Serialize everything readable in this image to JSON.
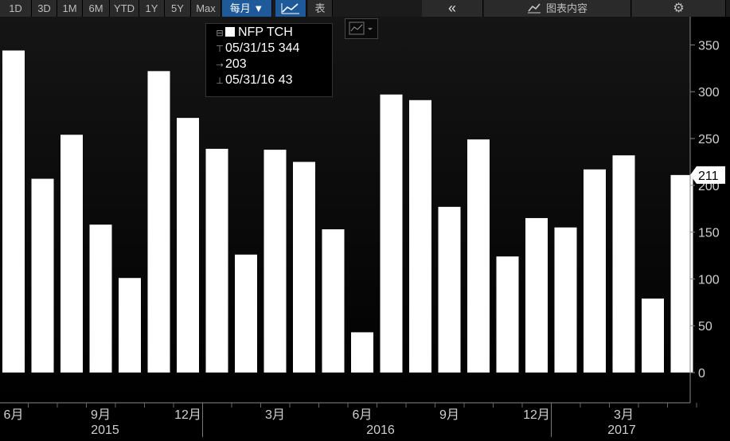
{
  "toolbar": {
    "ranges": [
      "1D",
      "3D",
      "1M",
      "6M",
      "YTD",
      "1Y",
      "5Y",
      "Max"
    ],
    "frequency": "每月 ▼",
    "table_label": "表",
    "collapse_label": "«",
    "chart_content_label": "图表内容",
    "icons": [
      "line-chart-icon",
      "collapse-icon",
      "chart-content-icon",
      "gear-icon"
    ]
  },
  "legend": {
    "series": "NFP TCH",
    "high": "05/31/15 344",
    "average": "203",
    "low": "05/31/16 43"
  },
  "last_value_label": "211",
  "colors": {
    "bar": "#ffffff",
    "background": "#000000",
    "plot_top": "#141414",
    "last_value_bg": "#ffffff"
  },
  "chart_data": {
    "type": "bar",
    "series": [
      {
        "name": "NFP TCH",
        "values": [
          344,
          207,
          254,
          158,
          101,
          322,
          272,
          239,
          126,
          238,
          225,
          153,
          43,
          297,
          291,
          177,
          249,
          124,
          165,
          155,
          217,
          232,
          79,
          211
        ]
      }
    ],
    "ylim": [
      -35,
      375
    ],
    "yticks": [
      0,
      50,
      100,
      150,
      200,
      250,
      300,
      350
    ],
    "month_labels": [
      "6月",
      "9月",
      "12月",
      "3月",
      "6月",
      "9月",
      "12月",
      "3月"
    ],
    "year_labels": [
      "2015",
      "2016",
      "2017"
    ],
    "grid": false
  }
}
